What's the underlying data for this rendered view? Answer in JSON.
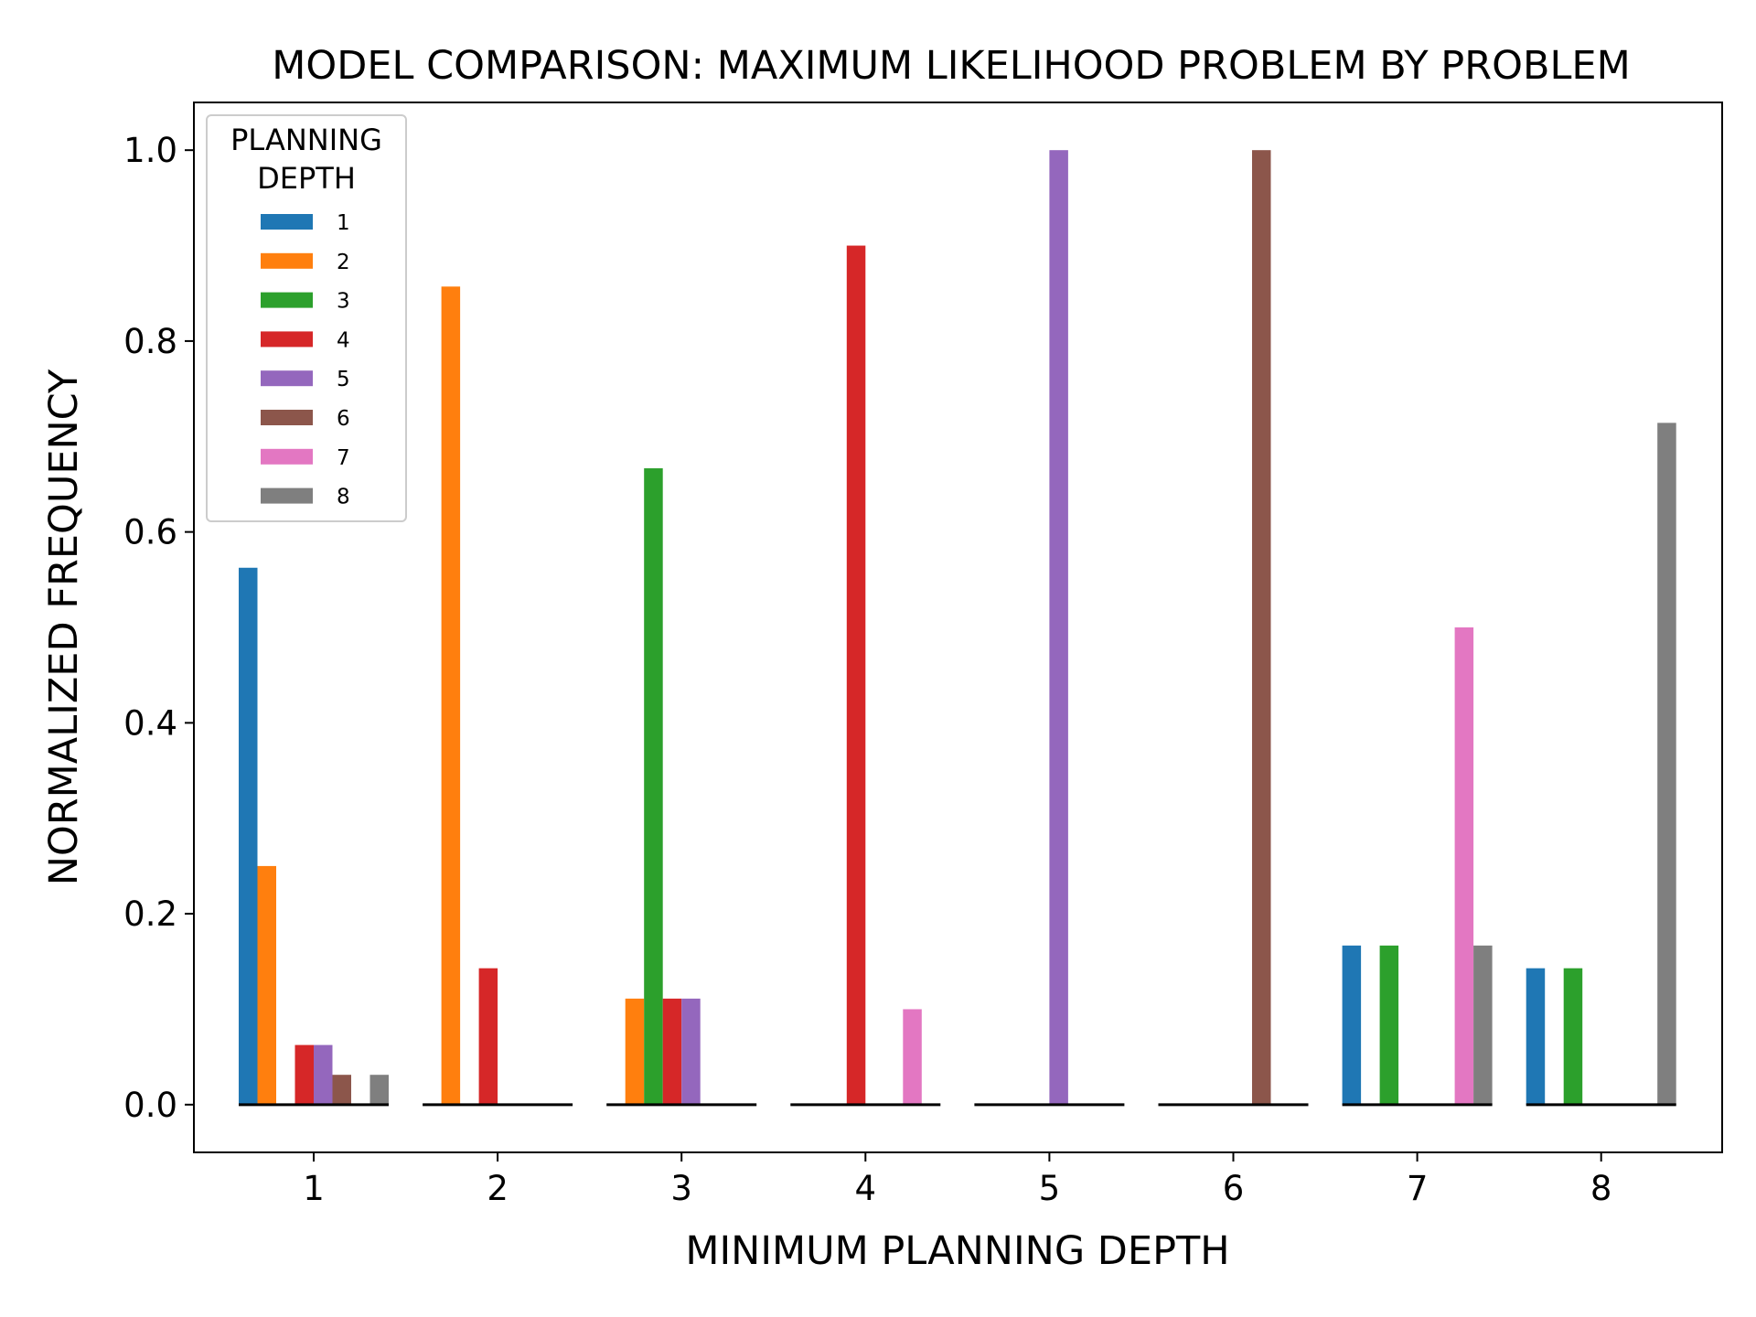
{
  "chart_data": {
    "type": "bar",
    "title": "MODEL COMPARISON: MAXIMUM LIKELIHOOD PROBLEM BY PROBLEM",
    "xlabel": "MINIMUM PLANNING DEPTH",
    "ylabel": "NORMALIZED FREQUENCY",
    "categories": [
      "1",
      "2",
      "3",
      "4",
      "5",
      "6",
      "7",
      "8"
    ],
    "ylim": [
      -0.05,
      1.05
    ],
    "yticks": [
      "0.0",
      "0.2",
      "0.4",
      "0.6",
      "0.8",
      "1.0"
    ],
    "legend": {
      "title_line1": "PLANNING",
      "title_line2": "DEPTH",
      "placement": "top-left"
    },
    "series": [
      {
        "name": "1",
        "color": "#1f77b4",
        "values": [
          0.5625,
          0.0,
          0.0,
          0.0,
          0.0,
          0.0,
          0.1667,
          0.1429
        ]
      },
      {
        "name": "2",
        "color": "#ff7f0e",
        "values": [
          0.25,
          0.8571,
          0.1111,
          0.0,
          0.0,
          0.0,
          0.0,
          0.0
        ]
      },
      {
        "name": "3",
        "color": "#2ca02c",
        "values": [
          0.0,
          0.0,
          0.6667,
          0.0,
          0.0,
          0.0,
          0.1667,
          0.1429
        ]
      },
      {
        "name": "4",
        "color": "#d62728",
        "values": [
          0.0625,
          0.1429,
          0.1111,
          0.9,
          0.0,
          0.0,
          0.0,
          0.0
        ]
      },
      {
        "name": "5",
        "color": "#9467bd",
        "values": [
          0.0625,
          0.0,
          0.1111,
          0.0,
          1.0,
          0.0,
          0.0,
          0.0
        ]
      },
      {
        "name": "6",
        "color": "#8c564b",
        "values": [
          0.03125,
          0.0,
          0.0,
          0.0,
          0.0,
          1.0,
          0.0,
          0.0
        ]
      },
      {
        "name": "7",
        "color": "#e377c2",
        "values": [
          0.0,
          0.0,
          0.0,
          0.1,
          0.0,
          0.0,
          0.5,
          0.0
        ]
      },
      {
        "name": "8",
        "color": "#7f7f7f",
        "values": [
          0.03125,
          0.0,
          0.0,
          0.0,
          0.0,
          0.0,
          0.1667,
          0.7143
        ]
      }
    ]
  }
}
